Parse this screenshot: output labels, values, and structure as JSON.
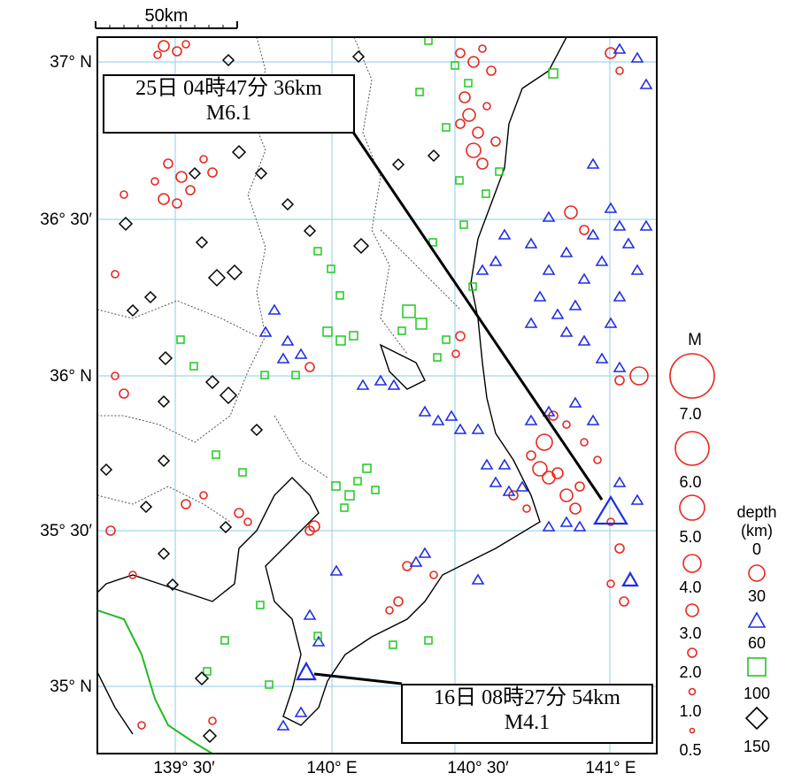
{
  "scale_bar": {
    "label": "50km"
  },
  "axes": {
    "lat_labels": [
      "37° N",
      "36° 30′",
      "36° N",
      "35° 30′",
      "35° N"
    ],
    "lon_labels": [
      "139° 30′",
      "140° E",
      "140° 30′",
      "141° E"
    ]
  },
  "callouts": [
    {
      "line1": "25日 04時47分 36km",
      "line2": "M6.1"
    },
    {
      "line1": "16日 08時27分 54km",
      "line2": "M4.1"
    }
  ],
  "legend": {
    "magnitude_title": "M",
    "magnitudes": [
      "7.0",
      "6.0",
      "5.0",
      "4.0",
      "3.0",
      "2.0",
      "1.0",
      "0.5"
    ],
    "depth_title": "depth",
    "depth_unit": "(km)",
    "depths": [
      "0",
      "30",
      "60",
      "100",
      "150"
    ]
  },
  "colors": {
    "shallow": "#e8281e",
    "mid": "#1e2ee6",
    "deep": "#1ec81e",
    "deepest": "#000000",
    "grid": "#9ed6f0",
    "prefecture_green_line": "#22bb22"
  }
}
